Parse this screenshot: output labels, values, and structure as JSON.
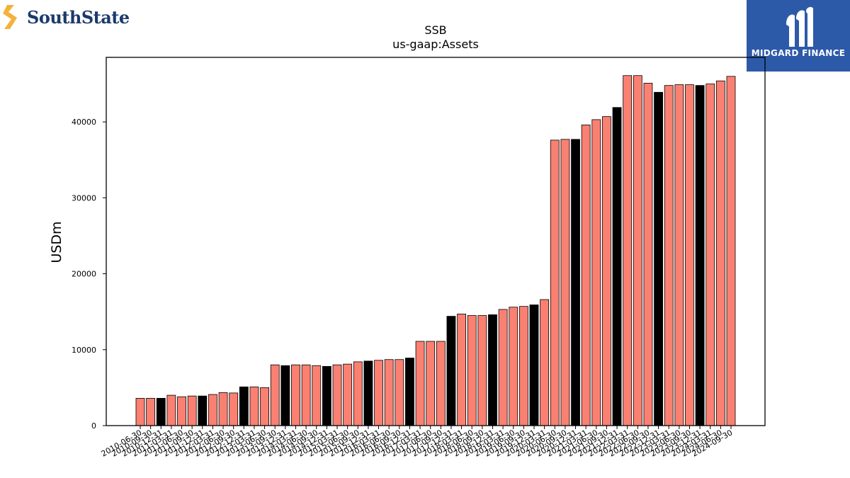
{
  "logos": {
    "brand": {
      "name": "SouthState",
      "color": "#1b3a6b",
      "accent": "#f3b23a"
    },
    "sponsor": {
      "name": "MIDGARD FINANCE",
      "background": "#2d5aa8"
    }
  },
  "chart_data": {
    "type": "bar",
    "title": "SSB",
    "subtitle": "us-gaap:Assets",
    "xlabel": "",
    "ylabel": "USDm",
    "ylim": [
      0,
      48500
    ],
    "yticks": [
      0,
      10000,
      20000,
      30000,
      40000
    ],
    "grid": false,
    "colors": {
      "default": "#fa8072",
      "highlight": "#000000",
      "edge": "#000000"
    },
    "categories": [
      "2010-06-30",
      "2010-09-30",
      "2010-12-31",
      "2011-03-31",
      "2011-06-30",
      "2011-09-30",
      "2011-12-31",
      "2012-03-31",
      "2012-06-30",
      "2012-09-30",
      "2012-12-31",
      "2013-03-31",
      "2013-06-30",
      "2013-09-30",
      "2013-12-31",
      "2014-03-31",
      "2014-06-30",
      "2014-09-30",
      "2014-12-31",
      "2015-03-31",
      "2015-06-30",
      "2015-09-30",
      "2015-12-31",
      "2016-03-31",
      "2016-06-30",
      "2016-09-30",
      "2016-12-31",
      "2017-03-31",
      "2017-06-30",
      "2017-09-30",
      "2017-12-31",
      "2018-03-31",
      "2018-06-30",
      "2018-09-30",
      "2018-12-31",
      "2019-03-31",
      "2019-06-30",
      "2019-09-30",
      "2019-12-31",
      "2020-03-31",
      "2020-06-30",
      "2020-09-30",
      "2020-12-31",
      "2021-03-31",
      "2021-06-30",
      "2021-09-30",
      "2021-12-31",
      "2022-03-31",
      "2022-06-30",
      "2022-09-30",
      "2022-12-31",
      "2023-03-31",
      "2023-06-30",
      "2023-09-30",
      "2023-12-31",
      "2024-03-31",
      "2024-06-30",
      "2024-09-30"
    ],
    "values": [
      3600,
      3600,
      3600,
      4000,
      3800,
      3900,
      3900,
      4100,
      4350,
      4300,
      5100,
      5100,
      5000,
      8000,
      7900,
      8000,
      8000,
      7900,
      7800,
      8000,
      8100,
      8400,
      8500,
      8600,
      8700,
      8700,
      8900,
      11100,
      11100,
      11100,
      14400,
      14700,
      14500,
      14500,
      14600,
      15300,
      15600,
      15700,
      15900,
      16600,
      37600,
      37700,
      37700,
      39600,
      40300,
      40700,
      41900,
      46100,
      46100,
      45100,
      43900,
      44800,
      44900,
      44900,
      44800,
      45000,
      45400,
      46000
    ],
    "highlighted": [
      "2010-12-31",
      "2011-12-31",
      "2012-12-31",
      "2013-12-31",
      "2014-12-31",
      "2015-12-31",
      "2016-12-31",
      "2017-12-31",
      "2018-12-31",
      "2019-12-31",
      "2020-12-31",
      "2021-12-31",
      "2022-12-31",
      "2023-12-31"
    ]
  }
}
